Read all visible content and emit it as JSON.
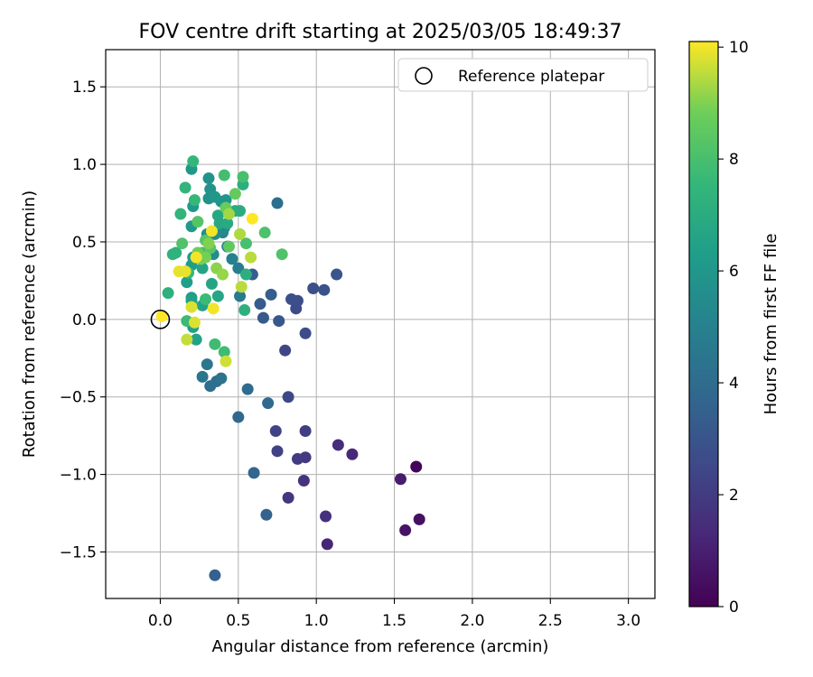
{
  "chart_data": {
    "type": "scatter",
    "title": "FOV centre drift starting at 2025/03/05 18:49:37",
    "xlabel": "Angular distance from reference (arcmin)",
    "ylabel": "Rotation from reference (arcmin)",
    "xlim": [
      -0.35,
      3.17
    ],
    "ylim": [
      -1.8,
      1.74
    ],
    "xticks": [
      0.0,
      0.5,
      1.0,
      1.5,
      2.0,
      2.5,
      3.0
    ],
    "xtick_labels": [
      "0.0",
      "0.5",
      "1.0",
      "1.5",
      "2.0",
      "2.5",
      "3.0"
    ],
    "yticks": [
      -1.5,
      -1.0,
      -0.5,
      0.0,
      0.5,
      1.0,
      1.5
    ],
    "ytick_labels": [
      "−1.5",
      "−1.0",
      "−0.5",
      "0.0",
      "0.5",
      "1.0",
      "1.5"
    ],
    "grid": true,
    "legend": {
      "placement": "top-right",
      "entries": [
        "Reference platepar"
      ]
    },
    "reference_point": {
      "x": 0.0,
      "y": 0.0,
      "label": "Reference platepar"
    },
    "colorbar": {
      "label": "Hours from first FF file",
      "colormap": "viridis",
      "range": [
        0,
        10.1
      ],
      "ticks": [
        0,
        2,
        4,
        6,
        8,
        10
      ],
      "tick_labels": [
        "0",
        "2",
        "4",
        "6",
        "8",
        "10"
      ]
    },
    "series": [
      {
        "points": [
          {
            "x": 1.64,
            "y": -0.95,
            "c": 0.1
          },
          {
            "x": 1.66,
            "y": -1.29,
            "c": 0.5
          },
          {
            "x": 1.57,
            "y": -1.36,
            "c": 0.6
          },
          {
            "x": 1.54,
            "y": -1.03,
            "c": 0.9
          },
          {
            "x": 1.07,
            "y": -1.45,
            "c": 1.2
          },
          {
            "x": 1.23,
            "y": -0.87,
            "c": 1.3
          },
          {
            "x": 1.14,
            "y": -0.81,
            "c": 1.5
          },
          {
            "x": 1.06,
            "y": -1.27,
            "c": 1.6
          },
          {
            "x": 0.92,
            "y": -1.04,
            "c": 1.7
          },
          {
            "x": 0.82,
            "y": -1.15,
            "c": 1.8
          },
          {
            "x": 0.93,
            "y": -0.89,
            "c": 1.9
          },
          {
            "x": 0.88,
            "y": -0.9,
            "c": 2.0
          },
          {
            "x": 0.93,
            "y": -0.72,
            "c": 2.1
          },
          {
            "x": 0.75,
            "y": -0.85,
            "c": 2.2
          },
          {
            "x": 0.74,
            "y": -0.72,
            "c": 2.3
          },
          {
            "x": 0.8,
            "y": -0.2,
            "c": 2.4
          },
          {
            "x": 0.82,
            "y": -0.5,
            "c": 2.5
          },
          {
            "x": 0.87,
            "y": 0.07,
            "c": 2.6
          },
          {
            "x": 0.93,
            "y": -0.09,
            "c": 2.6
          },
          {
            "x": 0.88,
            "y": 0.12,
            "c": 2.7
          },
          {
            "x": 0.84,
            "y": 0.13,
            "c": 2.8
          },
          {
            "x": 0.98,
            "y": 0.2,
            "c": 2.8
          },
          {
            "x": 1.05,
            "y": 0.19,
            "c": 2.9
          },
          {
            "x": 1.13,
            "y": 0.29,
            "c": 3.0
          },
          {
            "x": 0.76,
            "y": -0.01,
            "c": 3.1
          },
          {
            "x": 0.66,
            "y": 0.01,
            "c": 3.2
          },
          {
            "x": 0.64,
            "y": 0.1,
            "c": 3.3
          },
          {
            "x": 0.71,
            "y": 0.16,
            "c": 3.4
          },
          {
            "x": 0.59,
            "y": 0.29,
            "c": 3.4
          },
          {
            "x": 0.35,
            "y": -1.65,
            "c": 3.5
          },
          {
            "x": 0.68,
            "y": -1.26,
            "c": 3.6
          },
          {
            "x": 0.6,
            "y": -0.99,
            "c": 3.7
          },
          {
            "x": 0.5,
            "y": -0.63,
            "c": 3.8
          },
          {
            "x": 0.69,
            "y": -0.54,
            "c": 3.9
          },
          {
            "x": 0.56,
            "y": -0.45,
            "c": 4.0
          },
          {
            "x": 0.32,
            "y": -0.43,
            "c": 4.1
          },
          {
            "x": 0.36,
            "y": -0.4,
            "c": 4.2
          },
          {
            "x": 0.39,
            "y": -0.38,
            "c": 4.3
          },
          {
            "x": 0.27,
            "y": -0.37,
            "c": 4.4
          },
          {
            "x": 0.3,
            "y": -0.29,
            "c": 4.5
          },
          {
            "x": 0.75,
            "y": 0.75,
            "c": 4.1
          },
          {
            "x": 0.51,
            "y": 0.15,
            "c": 4.6
          },
          {
            "x": 0.5,
            "y": 0.33,
            "c": 4.8
          },
          {
            "x": 0.46,
            "y": 0.39,
            "c": 5.0
          },
          {
            "x": 0.43,
            "y": 0.47,
            "c": 5.1
          },
          {
            "x": 0.4,
            "y": 0.56,
            "c": 5.2
          },
          {
            "x": 0.41,
            "y": 0.59,
            "c": 5.4
          },
          {
            "x": 0.35,
            "y": 0.55,
            "c": 5.5
          },
          {
            "x": 0.34,
            "y": 0.42,
            "c": 5.5
          },
          {
            "x": 0.3,
            "y": 0.55,
            "c": 5.6
          },
          {
            "x": 0.31,
            "y": 0.78,
            "c": 5.7
          },
          {
            "x": 0.32,
            "y": 0.84,
            "c": 5.8
          },
          {
            "x": 0.31,
            "y": 0.91,
            "c": 5.8
          },
          {
            "x": 0.39,
            "y": 0.76,
            "c": 5.9
          },
          {
            "x": 0.42,
            "y": 0.77,
            "c": 5.9
          },
          {
            "x": 0.35,
            "y": 0.79,
            "c": 6.0
          },
          {
            "x": 0.2,
            "y": 0.97,
            "c": 6.0
          },
          {
            "x": 0.21,
            "y": 0.73,
            "c": 6.1
          },
          {
            "x": 0.2,
            "y": 0.6,
            "c": 6.1
          },
          {
            "x": 0.21,
            "y": 0.4,
            "c": 6.2
          },
          {
            "x": 0.2,
            "y": 0.35,
            "c": 6.2
          },
          {
            "x": 0.17,
            "y": 0.24,
            "c": 6.3
          },
          {
            "x": 0.2,
            "y": 0.14,
            "c": 6.3
          },
          {
            "x": 0.2,
            "y": 0.12,
            "c": 6.4
          },
          {
            "x": 0.21,
            "y": -0.05,
            "c": 6.4
          },
          {
            "x": 0.23,
            "y": -0.13,
            "c": 6.5
          },
          {
            "x": 0.27,
            "y": 0.09,
            "c": 6.5
          },
          {
            "x": 0.27,
            "y": 0.33,
            "c": 6.6
          },
          {
            "x": 0.33,
            "y": 0.23,
            "c": 6.6
          },
          {
            "x": 0.37,
            "y": 0.15,
            "c": 6.7
          },
          {
            "x": 0.38,
            "y": 0.62,
            "c": 6.8
          },
          {
            "x": 0.37,
            "y": 0.67,
            "c": 6.8
          },
          {
            "x": 0.43,
            "y": 0.62,
            "c": 6.9
          },
          {
            "x": 0.48,
            "y": 0.7,
            "c": 6.9
          },
          {
            "x": 0.51,
            "y": 0.7,
            "c": 7.0
          },
          {
            "x": 0.53,
            "y": 0.87,
            "c": 7.1
          },
          {
            "x": 0.55,
            "y": 0.29,
            "c": 7.1
          },
          {
            "x": 0.54,
            "y": 0.06,
            "c": 7.2
          },
          {
            "x": 0.05,
            "y": 0.17,
            "c": 7.2
          },
          {
            "x": 0.08,
            "y": 0.42,
            "c": 7.3
          },
          {
            "x": 0.1,
            "y": 0.43,
            "c": 7.3
          },
          {
            "x": 0.13,
            "y": 0.68,
            "c": 7.4
          },
          {
            "x": 0.16,
            "y": 0.85,
            "c": 7.4
          },
          {
            "x": 0.21,
            "y": 1.02,
            "c": 7.5
          },
          {
            "x": 0.22,
            "y": 0.77,
            "c": 7.6
          },
          {
            "x": 0.18,
            "y": 0.3,
            "c": 7.6
          },
          {
            "x": 0.17,
            "y": -0.01,
            "c": 7.7
          },
          {
            "x": 0.29,
            "y": 0.13,
            "c": 7.7
          },
          {
            "x": 0.35,
            "y": -0.16,
            "c": 7.8
          },
          {
            "x": 0.41,
            "y": -0.21,
            "c": 7.8
          },
          {
            "x": 0.27,
            "y": 0.43,
            "c": 7.9
          },
          {
            "x": 0.41,
            "y": 0.93,
            "c": 7.9
          },
          {
            "x": 0.53,
            "y": 0.92,
            "c": 8.0
          },
          {
            "x": 0.55,
            "y": 0.49,
            "c": 8.0
          },
          {
            "x": 0.67,
            "y": 0.56,
            "c": 8.1
          },
          {
            "x": 0.78,
            "y": 0.42,
            "c": 8.2
          },
          {
            "x": 0.14,
            "y": 0.49,
            "c": 8.2
          },
          {
            "x": 0.24,
            "y": 0.63,
            "c": 8.3
          },
          {
            "x": 0.29,
            "y": 0.51,
            "c": 8.3
          },
          {
            "x": 0.32,
            "y": 0.46,
            "c": 8.4
          },
          {
            "x": 0.44,
            "y": 0.47,
            "c": 8.5
          },
          {
            "x": 0.48,
            "y": 0.81,
            "c": 8.6
          },
          {
            "x": 0.42,
            "y": 0.72,
            "c": 8.7
          },
          {
            "x": 0.24,
            "y": 0.43,
            "c": 8.8
          },
          {
            "x": 0.26,
            "y": 0.39,
            "c": 8.9
          },
          {
            "x": 0.29,
            "y": 0.4,
            "c": 8.9
          },
          {
            "x": 0.31,
            "y": 0.49,
            "c": 9.0
          },
          {
            "x": 0.36,
            "y": 0.33,
            "c": 9.1
          },
          {
            "x": 0.4,
            "y": 0.29,
            "c": 9.2
          },
          {
            "x": 0.44,
            "y": 0.68,
            "c": 9.3
          },
          {
            "x": 0.51,
            "y": 0.55,
            "c": 9.4
          },
          {
            "x": 0.58,
            "y": 0.4,
            "c": 9.5
          },
          {
            "x": 0.52,
            "y": 0.21,
            "c": 9.5
          },
          {
            "x": 0.17,
            "y": -0.13,
            "c": 9.6
          },
          {
            "x": 0.42,
            "y": -0.27,
            "c": 9.7
          },
          {
            "x": 0.22,
            "y": -0.02,
            "c": 9.8
          },
          {
            "x": 0.2,
            "y": 0.08,
            "c": 9.8
          },
          {
            "x": 0.12,
            "y": 0.31,
            "c": 9.9
          },
          {
            "x": 0.16,
            "y": 0.31,
            "c": 9.9
          },
          {
            "x": 0.23,
            "y": 0.4,
            "c": 10.0
          },
          {
            "x": 0.33,
            "y": 0.57,
            "c": 10.0
          },
          {
            "x": 0.34,
            "y": 0.07,
            "c": 10.0
          },
          {
            "x": 0.59,
            "y": 0.65,
            "c": 10.1
          },
          {
            "x": 0.01,
            "y": 0.02,
            "c": 10.1
          }
        ]
      }
    ]
  }
}
